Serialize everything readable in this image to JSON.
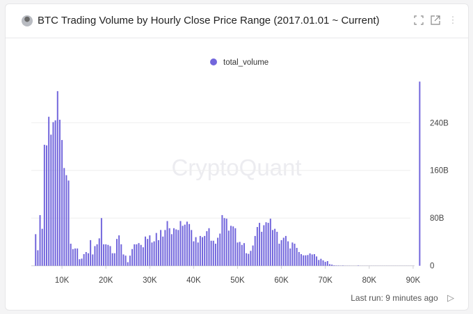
{
  "header": {
    "title": "BTC Trading Volume by Hourly Close Price Range (2017.01.01 ~ Current)",
    "icons": [
      "fullscreen-icon",
      "open-external-icon",
      "more-vertical-icon"
    ]
  },
  "watermark": "CryptoQuant",
  "footer": {
    "last_run": "Last run: 9 minutes ago",
    "run_icon": "play-icon"
  },
  "colors": {
    "bar": "#7266dc",
    "grid": "#eeeeee"
  },
  "chart_data": {
    "type": "bar",
    "title": "",
    "legend": {
      "position": "top-center",
      "entries": [
        "total_volume"
      ]
    },
    "xlabel": "",
    "ylabel": "",
    "bin_start": 4000,
    "bin_size": 500,
    "x_ticks": [
      "10K",
      "20K",
      "30K",
      "40K",
      "50K",
      "60K",
      "70K",
      "80K",
      "90K"
    ],
    "x_tick_values": [
      10000,
      20000,
      30000,
      40000,
      50000,
      60000,
      70000,
      80000,
      90000
    ],
    "y_ticks": [
      "0",
      "80B",
      "160B",
      "240B"
    ],
    "y_tick_values": [
      0,
      80,
      160,
      240
    ],
    "y_axis_position": "right",
    "ylim": [
      0,
      310
    ],
    "grid": true,
    "series": [
      {
        "name": "total_volume",
        "values": [
          53,
          26,
          85,
          62,
          203,
          202,
          250,
          220,
          241,
          244,
          293,
          245,
          211,
          164,
          152,
          143,
          37,
          28,
          29,
          29,
          11,
          12,
          19.5,
          23,
          21,
          43,
          19,
          33,
          36,
          46,
          80,
          36,
          36,
          35,
          33,
          21,
          21,
          45,
          51,
          36,
          19,
          17,
          6,
          17,
          28,
          36,
          36,
          38,
          35,
          31,
          49,
          45,
          51,
          39,
          41,
          55,
          43,
          60,
          49,
          60,
          75,
          63,
          53,
          63,
          61,
          60,
          75,
          67,
          69,
          74,
          70,
          60,
          41,
          48,
          39,
          50,
          48,
          50,
          58,
          63,
          42,
          42,
          37,
          47,
          54,
          85,
          80,
          79,
          59,
          67,
          66,
          63,
          39,
          40,
          35,
          38,
          21,
          20,
          25,
          34,
          50,
          65,
          72,
          57,
          68,
          73,
          72,
          79,
          60,
          62,
          57,
          37,
          43,
          47,
          50,
          41,
          29,
          39,
          37,
          30,
          23,
          19.5,
          17.5,
          17.5,
          18,
          20.7,
          19,
          19.5,
          15.6,
          9.7,
          11.7,
          9,
          6.6,
          7.8,
          2.7,
          2,
          0.8,
          0.5,
          0.5,
          0.3,
          0.5,
          0.2,
          0.2,
          0.2,
          0.1,
          0.1,
          0.1,
          0.5,
          0.1,
          0.1,
          0.1,
          0.1,
          0.1,
          0.1,
          0.1,
          0.1,
          0.1,
          0.1,
          0.1,
          0.1,
          0.1,
          0.1,
          0.1,
          0.1,
          0.1,
          0.1,
          0.1,
          0.1,
          0.1,
          0.1,
          0.1,
          0.1,
          0.1,
          0,
          0,
          309
        ]
      }
    ]
  }
}
